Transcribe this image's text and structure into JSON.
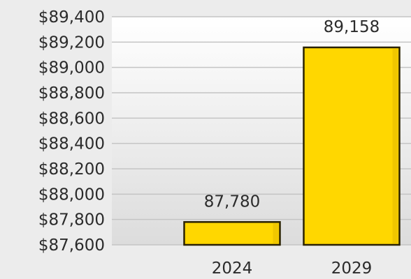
{
  "chart_data": {
    "type": "bar",
    "categories": [
      "2024",
      "2029"
    ],
    "values": [
      87780,
      89158
    ],
    "value_labels": [
      "87,780",
      "89,158"
    ],
    "ylim": [
      87600,
      89400
    ],
    "yticks": [
      87600,
      87800,
      88000,
      88200,
      88400,
      88600,
      88800,
      89000,
      89200,
      89400
    ],
    "ytick_labels": [
      "$87,600",
      "$87,800",
      "$88,000",
      "$88,200",
      "$88,400",
      "$88,600",
      "$88,800",
      "$89,000",
      "$89,200",
      "$89,400"
    ],
    "grid": true,
    "bar_color": "#ffd700",
    "bar_edge_color": "#2a2200",
    "plot_background_top": "#ffffff",
    "plot_background_bottom": "#dcdcdc",
    "page_background": "#ececec"
  }
}
